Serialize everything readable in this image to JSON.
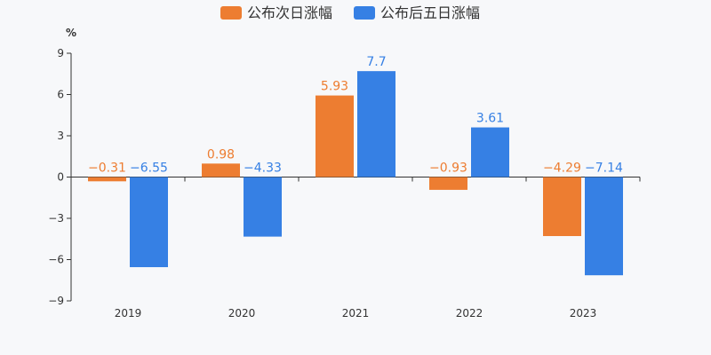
{
  "chart_data": {
    "type": "bar",
    "y_unit": "%",
    "categories": [
      "2019",
      "2020",
      "2021",
      "2022",
      "2023"
    ],
    "series": [
      {
        "name": "公布次日涨幅",
        "color": "#ed7d31",
        "values": [
          -0.31,
          0.98,
          5.93,
          -0.93,
          -4.29
        ],
        "labels": [
          "−0.31",
          "0.98",
          "5.93",
          "−0.93",
          "−4.29"
        ]
      },
      {
        "name": "公布后五日涨幅",
        "color": "#3680e4",
        "values": [
          -6.55,
          -4.33,
          7.7,
          3.61,
          -7.14
        ],
        "labels": [
          "−6.55",
          "−4.33",
          "7.7",
          "3.61",
          "−7.14"
        ]
      }
    ],
    "ylim": [
      -9,
      9
    ],
    "yticks": [
      9,
      6,
      3,
      0,
      -3,
      -6,
      -9
    ],
    "ytick_labels": [
      "9",
      "6",
      "3",
      "0",
      "−3",
      "−6",
      "−9"
    ],
    "legend_position": "top-center",
    "grid": false
  }
}
